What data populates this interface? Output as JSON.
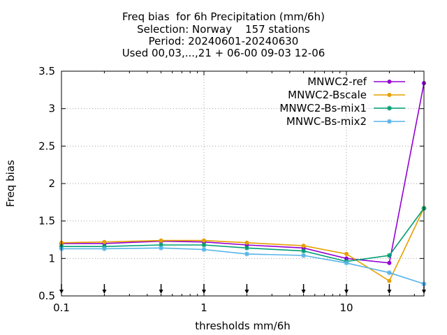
{
  "chart_data": {
    "type": "line",
    "title_lines": [
      "Freq bias  for 6h Precipitation (mm/6h)",
      "Selection: Norway    157 stations",
      "Period: 20240601-20240630",
      "Used 00,03,...,21 + 06-00 09-03 12-06"
    ],
    "xlabel": "thresholds mm/6h",
    "ylabel": "Freq bias",
    "x_scale": "log",
    "xlim": [
      0.1,
      35
    ],
    "ylim": [
      0.5,
      3.5
    ],
    "x_ticks": [
      {
        "value": 0.1,
        "label": "0.1"
      },
      {
        "value": 1,
        "label": "1"
      },
      {
        "value": 10,
        "label": "10"
      }
    ],
    "y_ticks": [
      {
        "value": 0.5,
        "label": "0.5"
      },
      {
        "value": 1,
        "label": "1"
      },
      {
        "value": 1.5,
        "label": "1.5"
      },
      {
        "value": 2,
        "label": "2"
      },
      {
        "value": 2.5,
        "label": "2.5"
      },
      {
        "value": 3,
        "label": "3"
      },
      {
        "value": 3.5,
        "label": "3.5"
      }
    ],
    "grid": true,
    "legend_position": "top-right",
    "x": [
      0.1,
      0.2,
      0.5,
      1,
      2,
      5,
      10,
      20,
      35
    ],
    "series": [
      {
        "name": "MNWC2-ref",
        "color": "#9400d3",
        "marker": "circle",
        "values": [
          1.2,
          1.2,
          1.23,
          1.22,
          1.18,
          1.14,
          1.0,
          0.94,
          3.34
        ]
      },
      {
        "name": "MNWC2-Bscale",
        "color": "#e69f00",
        "marker": "circle",
        "values": [
          1.21,
          1.22,
          1.24,
          1.24,
          1.21,
          1.17,
          1.06,
          0.7,
          1.67
        ]
      },
      {
        "name": "MNWC2-Bs-mix1",
        "color": "#009e73",
        "marker": "star",
        "values": [
          1.16,
          1.16,
          1.18,
          1.18,
          1.14,
          1.1,
          0.96,
          1.04,
          1.67
        ]
      },
      {
        "name": "MNWC-Bs-mix2",
        "color": "#56b4e9",
        "marker": "star",
        "values": [
          1.13,
          1.13,
          1.14,
          1.12,
          1.06,
          1.04,
          0.94,
          0.81,
          0.66
        ]
      }
    ],
    "annotation_arrows_x": [
      0.1,
      0.2,
      0.5,
      1,
      2,
      5,
      10,
      20,
      35
    ]
  }
}
